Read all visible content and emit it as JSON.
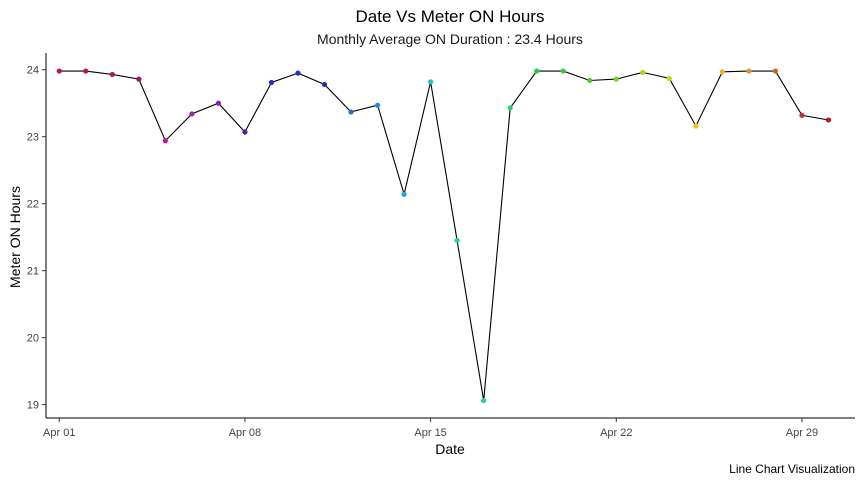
{
  "chart_data": {
    "type": "line",
    "title": "Date Vs Meter ON Hours",
    "subtitle": "Monthly Average ON Duration : 23.4 Hours",
    "xlabel": "Date",
    "ylabel": "Meter ON Hours",
    "caption": "Line Chart Visualization",
    "x_ticks": [
      "Apr 01",
      "Apr 08",
      "Apr 15",
      "Apr 22",
      "Apr 29"
    ],
    "x_tick_days": [
      1,
      8,
      15,
      22,
      29
    ],
    "y_ticks": [
      "19",
      "20",
      "21",
      "22",
      "23",
      "24"
    ],
    "y_tick_values": [
      19,
      20,
      21,
      22,
      23,
      24
    ],
    "xlim_days": [
      0.5,
      31
    ],
    "ylim": [
      18.8,
      24.25
    ],
    "grid": false,
    "legend": "none",
    "line_color": "#000000",
    "x": [
      "Apr 01",
      "Apr 02",
      "Apr 03",
      "Apr 04",
      "Apr 05",
      "Apr 06",
      "Apr 07",
      "Apr 08",
      "Apr 09",
      "Apr 10",
      "Apr 11",
      "Apr 12",
      "Apr 13",
      "Apr 14",
      "Apr 15",
      "Apr 16",
      "Apr 17",
      "Apr 18",
      "Apr 19",
      "Apr 20",
      "Apr 21",
      "Apr 22",
      "Apr 23",
      "Apr 24",
      "Apr 25",
      "Apr 26",
      "Apr 27",
      "Apr 28",
      "Apr 29",
      "Apr 30"
    ],
    "x_days": [
      1,
      2,
      3,
      4,
      5,
      6,
      7,
      8,
      9,
      10,
      11,
      12,
      13,
      14,
      15,
      16,
      17,
      18,
      19,
      20,
      21,
      22,
      23,
      24,
      25,
      26,
      27,
      28,
      29,
      30
    ],
    "values": [
      23.98,
      23.98,
      23.93,
      23.86,
      22.94,
      23.34,
      23.5,
      23.07,
      23.81,
      23.95,
      23.78,
      23.37,
      23.47,
      22.14,
      23.82,
      21.45,
      19.06,
      23.43,
      23.98,
      23.98,
      23.84,
      23.86,
      23.96,
      23.87,
      23.16,
      23.97,
      23.98,
      23.98,
      23.32,
      23.25
    ],
    "point_colors": [
      "#c0143c",
      "#c0143c",
      "#b0155c",
      "#a0106e",
      "#c214a0",
      "#a020b4",
      "#8a1cc4",
      "#5a14b4",
      "#2030c0",
      "#1838c8",
      "#1838c8",
      "#1a6ed8",
      "#1a90e0",
      "#18aadc",
      "#14c8d0",
      "#18d4b0",
      "#1ad49c",
      "#22d278",
      "#20d040",
      "#30d030",
      "#48d020",
      "#70d818",
      "#a8dc10",
      "#c8d810",
      "#f0c800",
      "#f0b020",
      "#e89020",
      "#d86020",
      "#c83028",
      "#c81020"
    ]
  }
}
